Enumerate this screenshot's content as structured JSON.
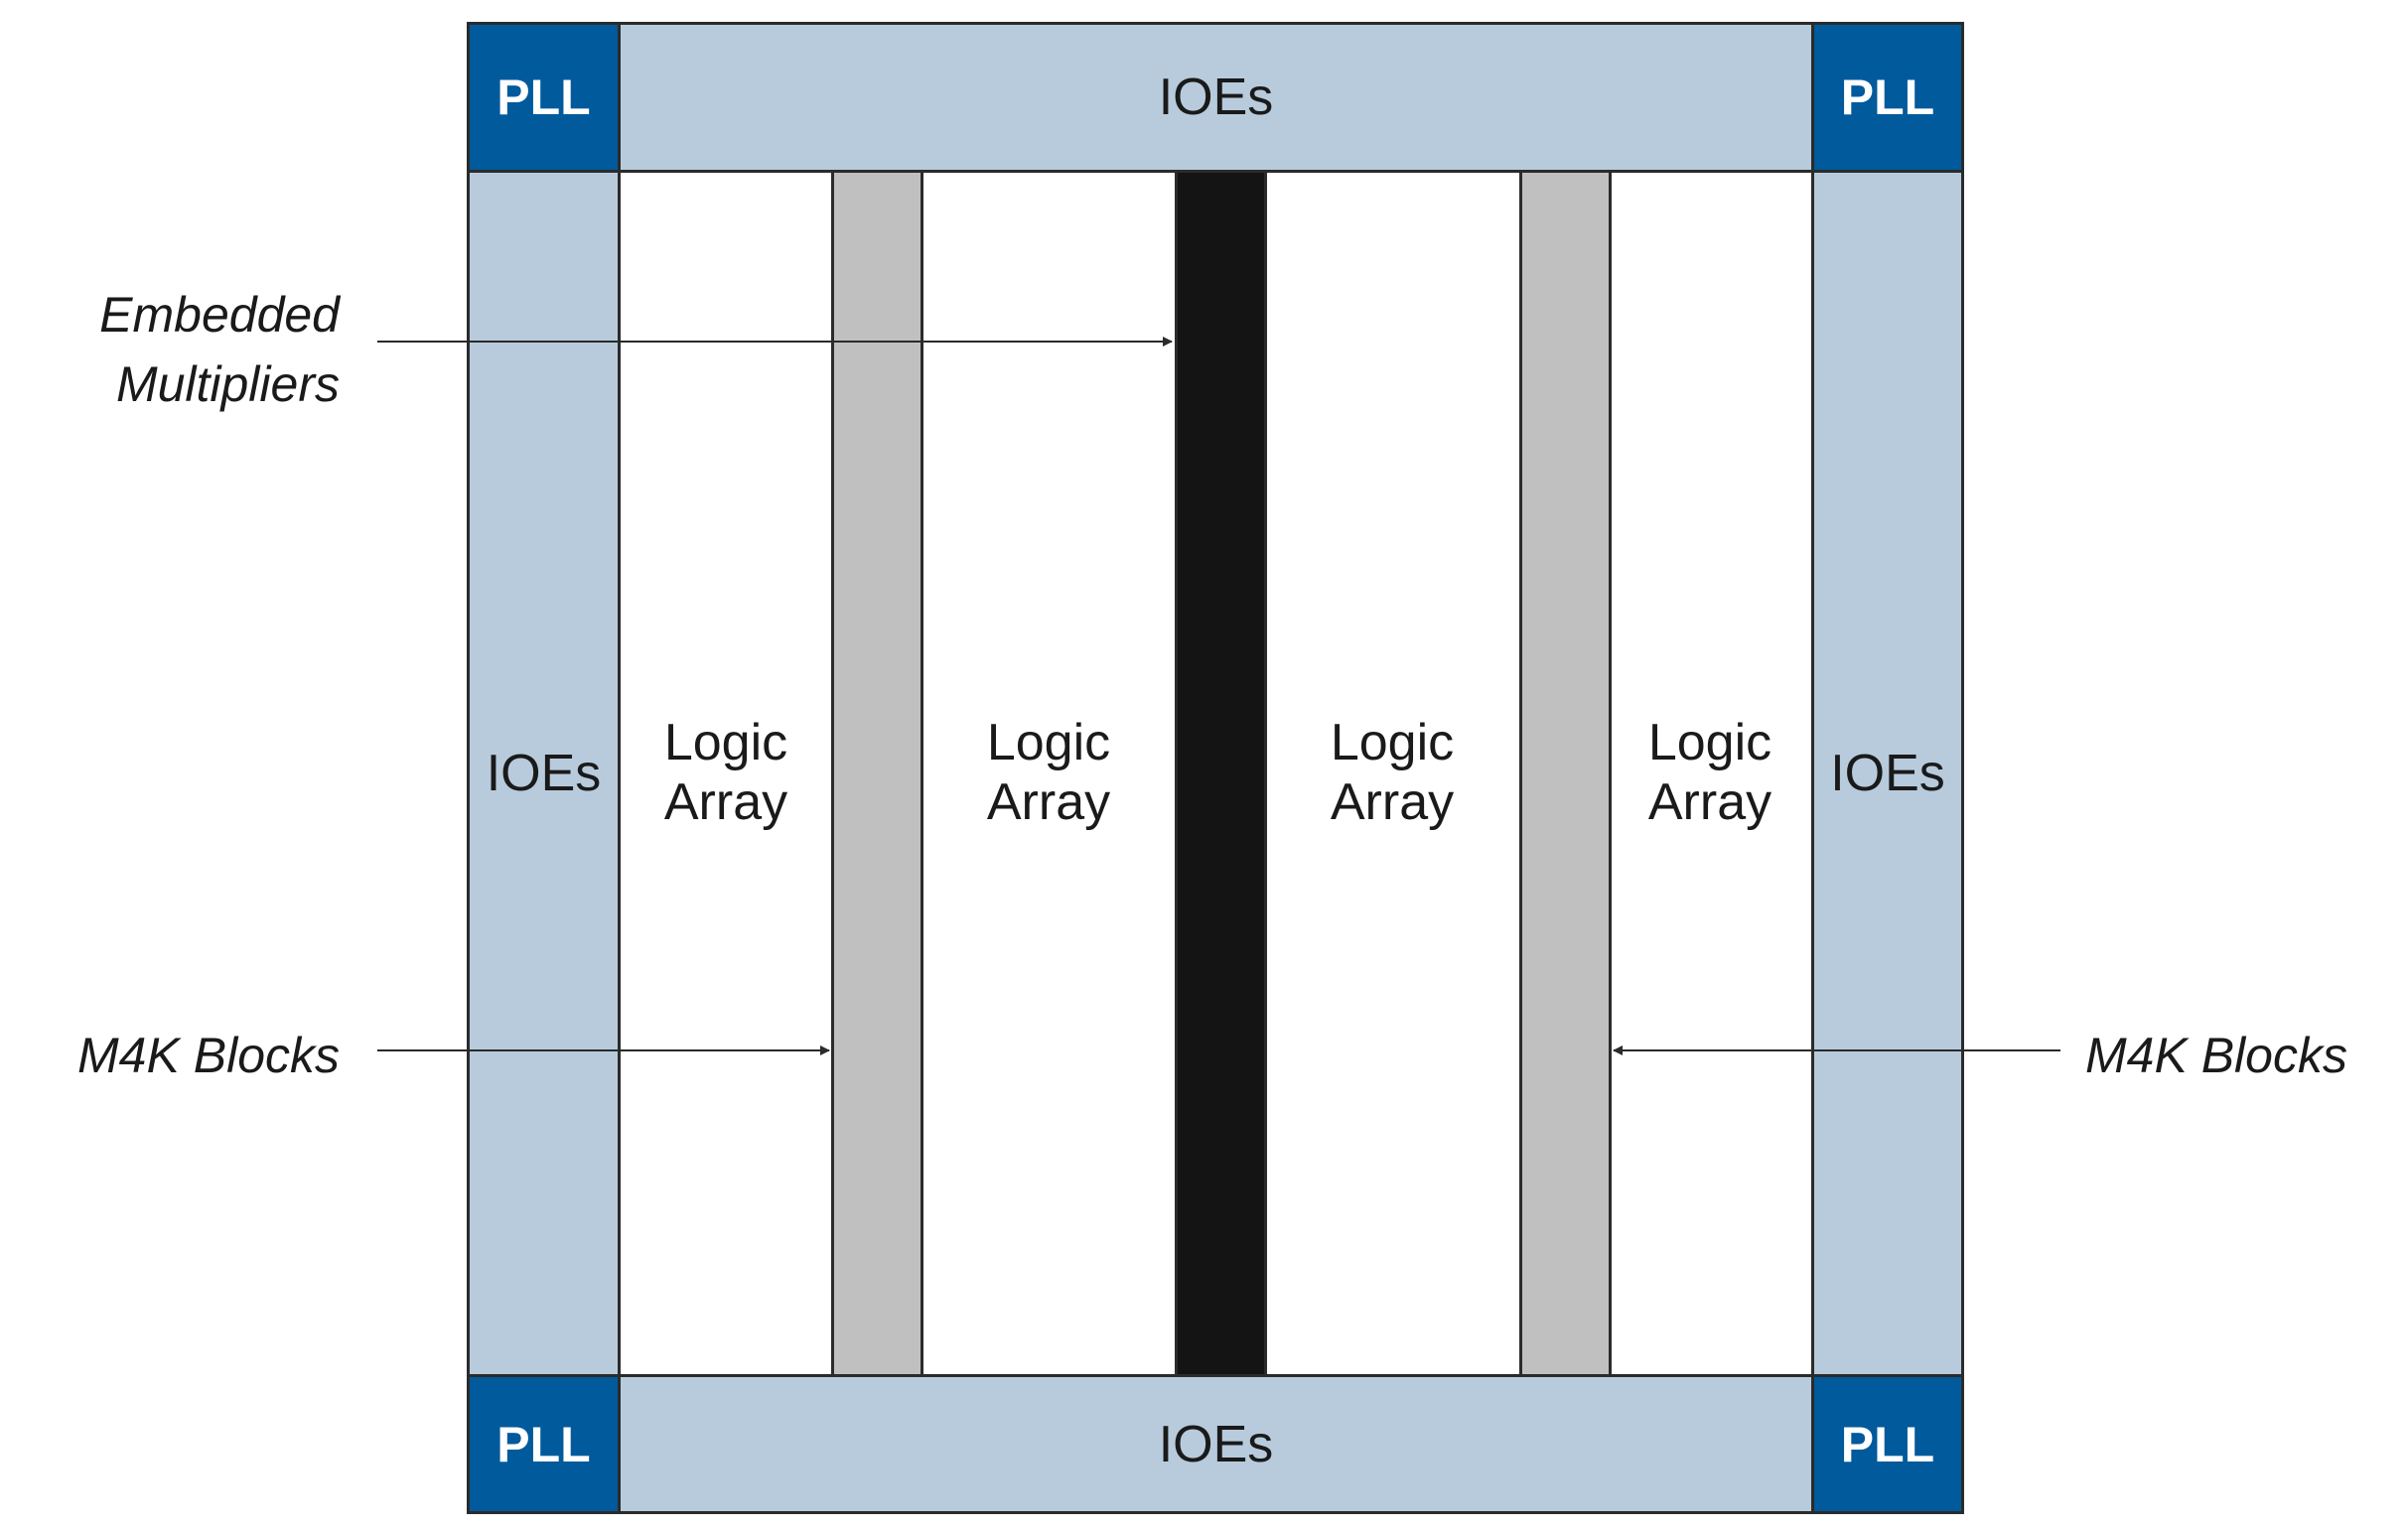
{
  "blocks": {
    "pll_top_left": "PLL",
    "pll_top_right": "PLL",
    "pll_bottom_left": "PLL",
    "pll_bottom_right": "PLL",
    "ioe_top": "IOEs",
    "ioe_bottom": "IOEs",
    "ioe_left": "IOEs",
    "ioe_right": "IOEs",
    "logic_arrays": [
      {
        "line1": "Logic",
        "line2": "Array"
      },
      {
        "line1": "Logic",
        "line2": "Array"
      },
      {
        "line1": "Logic",
        "line2": "Array"
      },
      {
        "line1": "Logic",
        "line2": "Array"
      }
    ]
  },
  "callouts": {
    "embedded_line1": "Embedded",
    "embedded_line2": "Multipliers",
    "m4k_left": "M4K Blocks",
    "m4k_right": "M4K Blocks"
  },
  "colors": {
    "pll": "#005a9c",
    "ioe": "#b8cbdd",
    "m4k": "#c0c0c0",
    "multiplier": "#141414"
  }
}
